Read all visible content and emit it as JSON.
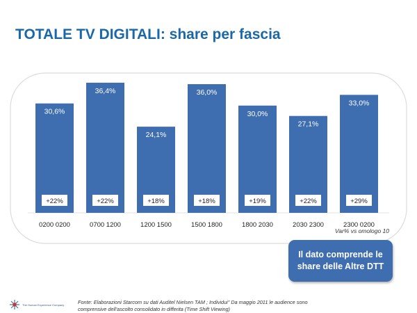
{
  "title": "TOTALE TV DIGITALI: share per fascia",
  "chart_data": {
    "type": "bar",
    "categories": [
      "0200 0200",
      "0700 1200",
      "1200 1500",
      "1500 1800",
      "1800 2030",
      "2030 2300",
      "2300 0200"
    ],
    "values": [
      30.6,
      36.4,
      24.1,
      36.0,
      30.0,
      27.1,
      33.0
    ],
    "value_labels": [
      "30,6%",
      "36,4%",
      "24,1%",
      "36,0%",
      "30,0%",
      "27,1%",
      "33,0%"
    ],
    "variation_labels": [
      "+22%",
      "+22%",
      "+18%",
      "+18%",
      "+19%",
      "+22%",
      "+29%"
    ],
    "variation_caption": "Var% vs omologo 10",
    "ylim": [
      0,
      40
    ],
    "grid": false,
    "bar_color": "#3e6db0"
  },
  "note": {
    "line1": "Il dato comprende le",
    "line2": "share delle Altre DTT"
  },
  "source": {
    "line1": "Fonte: Elaborazioni Starcom su dati Auditel Nielsen TAM ; Individui\" Da  maggio 2011 le audience sono",
    "line2": "comprensive dell'ascolto consolidato in differita (Time Shift Viewing)"
  },
  "logo_text": "The Human Experience Company"
}
